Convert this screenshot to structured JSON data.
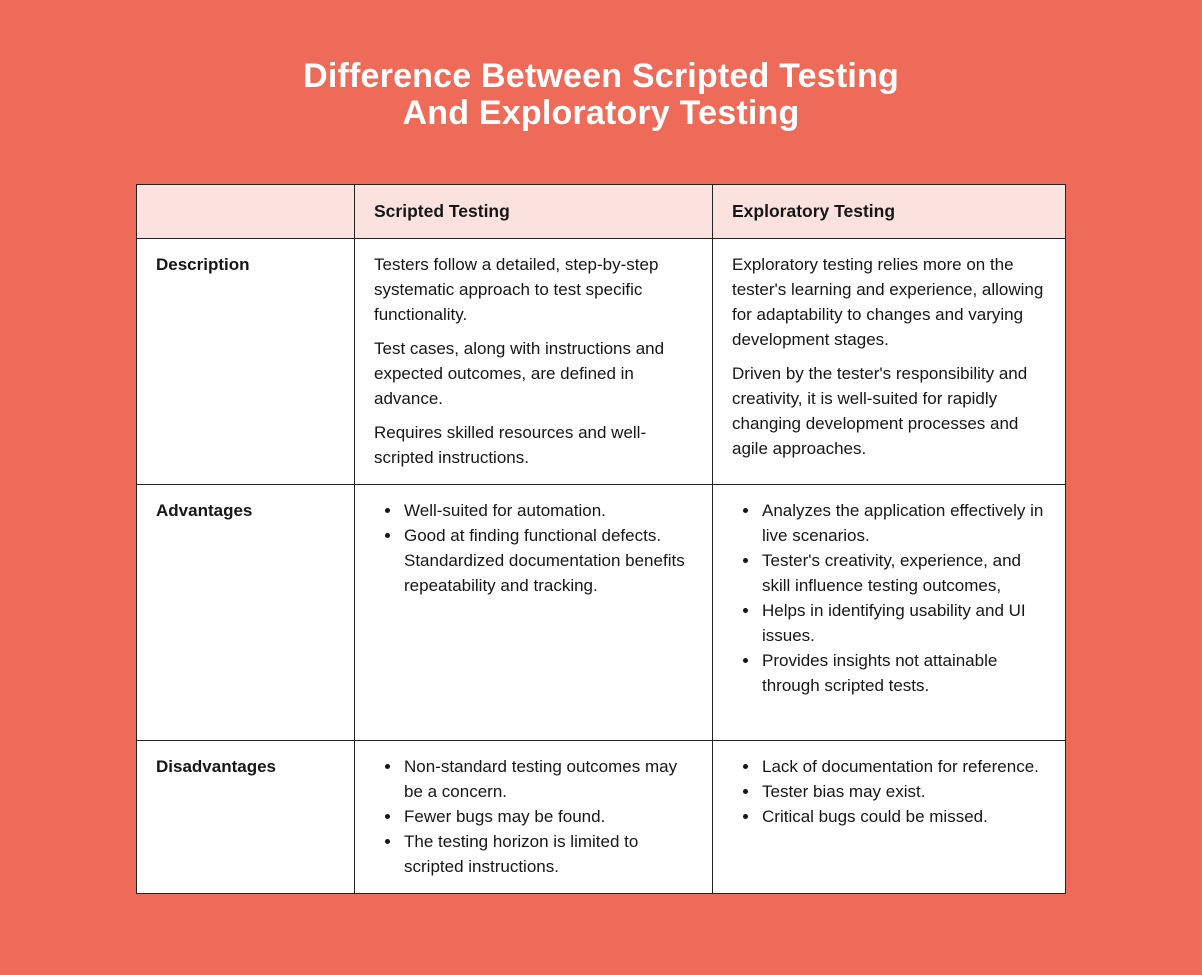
{
  "title": {
    "line1": "Difference Between Scripted Testing",
    "line2": "And Exploratory Testing"
  },
  "colors": {
    "background": "#ef6b59",
    "header_bg": "#fce2de",
    "cell_bg": "#ffffff",
    "border": "#222222",
    "body_text": "#161616",
    "title_text": "#ffffff"
  },
  "table": {
    "columns": [
      "",
      "Scripted Testing",
      "Exploratory Testing"
    ],
    "rows": [
      {
        "label": "Description",
        "scripted": {
          "type": "paragraphs",
          "items": [
            "Testers follow a detailed, step-by-step systematic approach to test specific functionality.",
            "Test cases, along with instructions and expected outcomes, are defined in advance.",
            "Requires skilled resources and well-scripted instructions."
          ]
        },
        "exploratory": {
          "type": "paragraphs",
          "items": [
            "Exploratory testing relies more on the tester's learning and experience, allowing for adaptability to changes and varying development stages.",
            "Driven by the tester's responsibility and creativity, it is well-suited for rapidly changing development processes and agile approaches."
          ]
        }
      },
      {
        "label": "Advantages",
        "scripted": {
          "type": "bullets",
          "items": [
            "Well-suited for automation.",
            "Good at finding functional defects. Standardized documentation benefits repeatability and tracking."
          ]
        },
        "exploratory": {
          "type": "bullets",
          "items": [
            "Analyzes the application effectively in live scenarios.",
            "Tester's creativity, experience, and skill influence testing outcomes,",
            "Helps in identifying usability and UI issues.",
            "Provides insights not attainable through scripted tests."
          ]
        }
      },
      {
        "label": "Disadvantages",
        "scripted": {
          "type": "bullets",
          "items": [
            "Non-standard testing outcomes may be a concern.",
            "Fewer bugs may be found.",
            "The testing horizon is limited to scripted instructions."
          ]
        },
        "exploratory": {
          "type": "bullets",
          "items": [
            "Lack of documentation for reference.",
            "Tester bias may exist.",
            "Critical bugs could be missed."
          ]
        }
      }
    ]
  }
}
